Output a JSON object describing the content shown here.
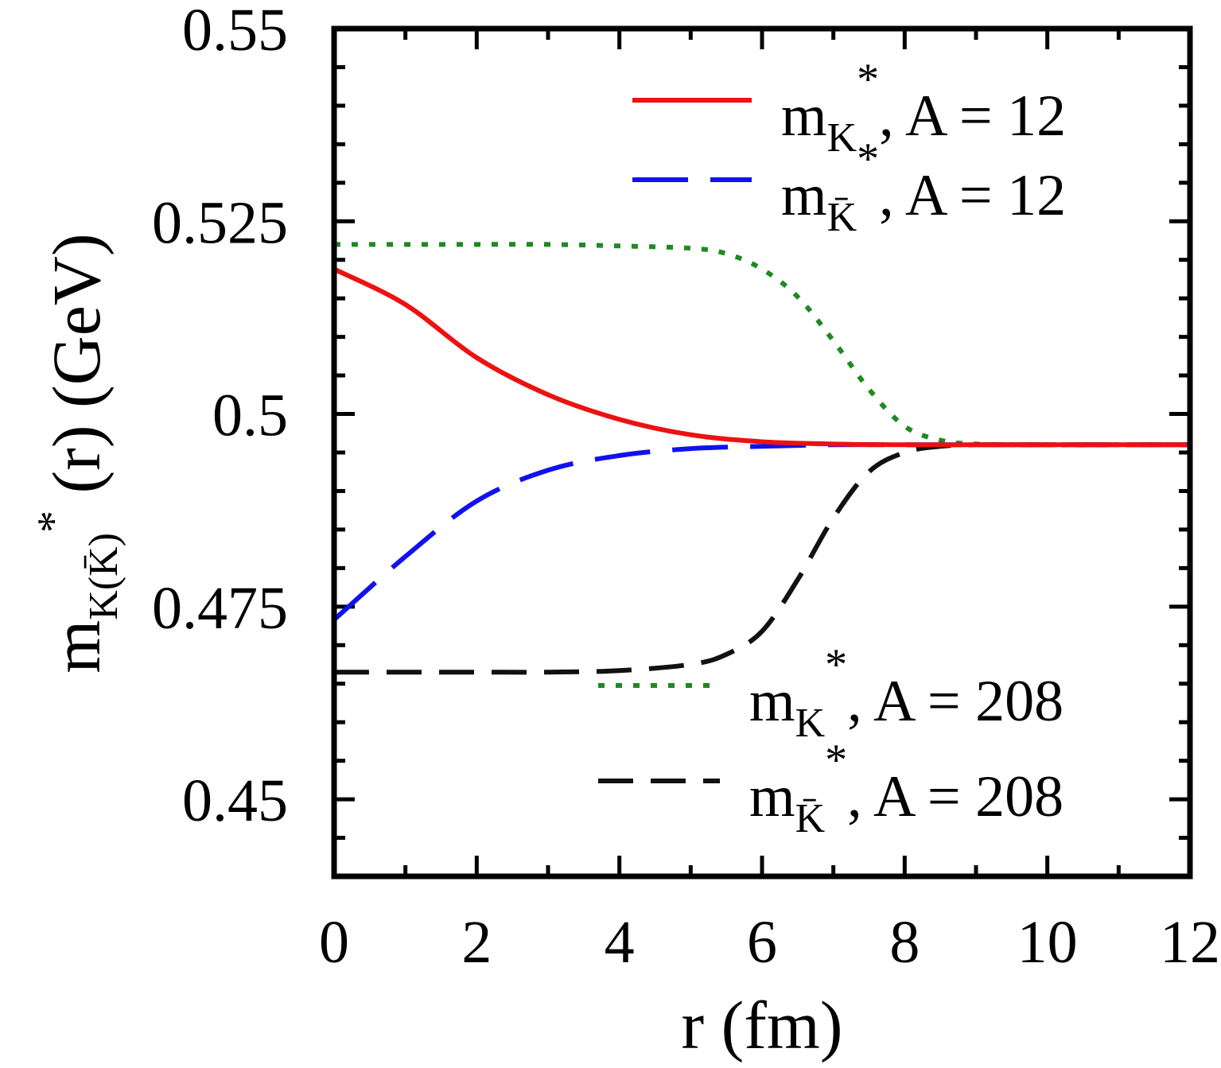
{
  "chart_data": {
    "type": "line",
    "xlabel": "r (fm)",
    "ylabel": {
      "base": "m",
      "sub": "K(K̄)",
      "sup": "*",
      "rest": " (r) (GeV)"
    },
    "xlim": [
      0,
      12
    ],
    "ylim": [
      0.44,
      0.55
    ],
    "xticks": [
      0,
      2,
      4,
      6,
      8,
      10,
      12
    ],
    "yticks": [
      0.45,
      0.475,
      0.5,
      0.525,
      0.55
    ],
    "ytick_labels": [
      "0.45",
      "0.475",
      "0.5",
      "0.525",
      "0.55"
    ],
    "grid": false,
    "series": [
      {
        "legend": {
          "base": "m",
          "sub": "K",
          "sup": "*",
          "rest": ", A =  12"
        },
        "color": "#ee1111",
        "style": "solid",
        "legend_location": "top-right",
        "x": [
          0,
          1,
          2,
          3,
          4,
          5,
          6,
          7,
          8,
          9,
          10,
          11,
          12
        ],
        "y": [
          0.5188,
          0.5142,
          0.5073,
          0.5025,
          0.4993,
          0.4973,
          0.4964,
          0.4961,
          0.496,
          0.496,
          0.496,
          0.496,
          0.496
        ]
      },
      {
        "legend": {
          "base": "m",
          "sub": "K̄",
          "sup": "*",
          "rest": ", A =  12"
        },
        "color": "#1111ee",
        "style": "long-dash",
        "legend_location": "top-right",
        "x": [
          0,
          1,
          2,
          3,
          4,
          5,
          6,
          7,
          8,
          9,
          10,
          11,
          12
        ],
        "y": [
          0.4733,
          0.4815,
          0.4887,
          0.4927,
          0.4946,
          0.4955,
          0.4958,
          0.496,
          0.496,
          0.496,
          0.496,
          0.496,
          0.496
        ]
      },
      {
        "legend": {
          "base": "m",
          "sub": "K",
          "sup": "*",
          "rest": ", A =  208"
        },
        "color": "#228822",
        "style": "dotted",
        "legend_location": "bottom-right",
        "x": [
          0,
          1,
          2,
          3,
          4,
          5,
          5.5,
          6,
          6.5,
          7,
          7.5,
          8,
          8.5,
          9,
          10,
          11,
          12
        ],
        "y": [
          0.522,
          0.522,
          0.522,
          0.522,
          0.5218,
          0.5215,
          0.5208,
          0.5188,
          0.5152,
          0.5095,
          0.5032,
          0.4984,
          0.4966,
          0.4961,
          0.496,
          0.496,
          0.496
        ]
      },
      {
        "legend": {
          "base": "m",
          "sub": "K̄",
          "sup": "*",
          "rest": ", A =  208"
        },
        "color": "#111111",
        "style": "dash",
        "legend_location": "bottom-right",
        "x": [
          0,
          1,
          2,
          3,
          4,
          5,
          5.5,
          6,
          6.5,
          7,
          7.5,
          8,
          8.5,
          9,
          10,
          11,
          12
        ],
        "y": [
          0.4665,
          0.4665,
          0.4665,
          0.4665,
          0.4667,
          0.4675,
          0.4688,
          0.4718,
          0.4785,
          0.4865,
          0.4925,
          0.495,
          0.4958,
          0.496,
          0.496,
          0.496,
          0.496
        ]
      }
    ]
  }
}
